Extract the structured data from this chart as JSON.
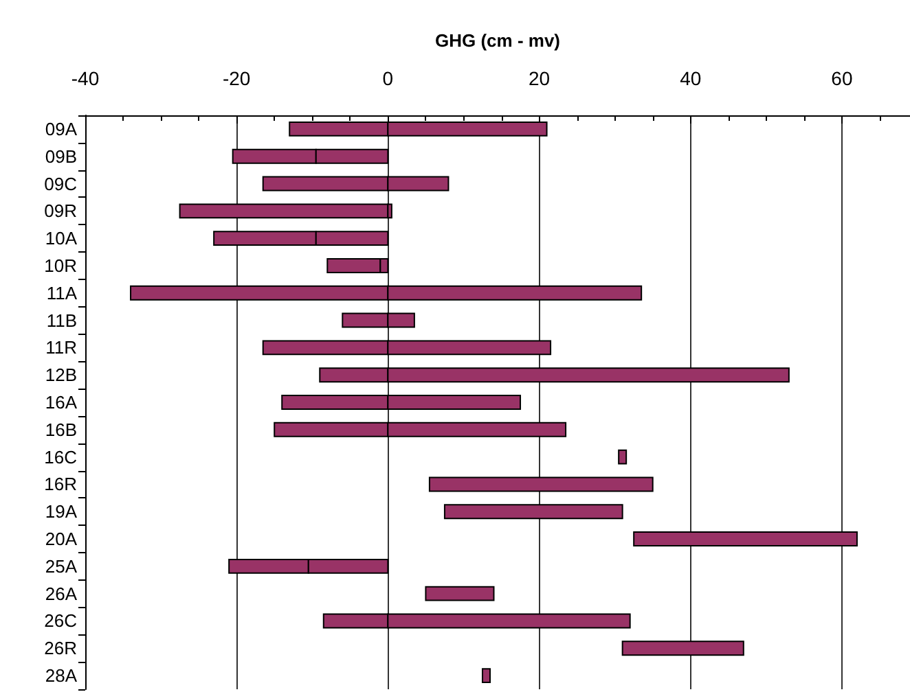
{
  "chart_data": {
    "type": "bar",
    "orientation": "horizontal",
    "xlabel": "GHG (cm - mv)",
    "categories": [
      "09A",
      "09B",
      "09C",
      "09R",
      "10A",
      "10R",
      "11A",
      "11B",
      "11R",
      "12B",
      "16A",
      "16B",
      "16C",
      "16R",
      "19A",
      "20A",
      "25A",
      "26A",
      "26C",
      "26R",
      "28A"
    ],
    "series": [
      {
        "color": "#993366",
        "base": [
          -13,
          -20.5,
          -16.5,
          -27.5,
          -23,
          -8,
          -34,
          -6,
          -16.5,
          -9,
          -14,
          -15,
          30.5,
          5.5,
          7.5,
          32.5,
          -21,
          5,
          -8.5,
          31,
          12.5
        ],
        "values": [
          13,
          11,
          16.5,
          27.5,
          13.5,
          7,
          34,
          6,
          16.5,
          9,
          14,
          15,
          1,
          29.5,
          23.5,
          29.5,
          10.5,
          9,
          8.5,
          16,
          1
        ]
      },
      {
        "color": "#993366",
        "base": [
          0,
          -9.5,
          0,
          0,
          -9.5,
          -1,
          0,
          0,
          0,
          0,
          0,
          0,
          null,
          null,
          null,
          null,
          -10.5,
          null,
          0,
          null,
          null
        ],
        "values": [
          21,
          9.5,
          8,
          0.5,
          9.5,
          1,
          33.5,
          3.5,
          21.5,
          53,
          17.5,
          23.5,
          null,
          null,
          null,
          null,
          10.5,
          null,
          32,
          null,
          null
        ]
      }
    ],
    "xlim": [
      -40,
      69
    ],
    "xticks": [
      -40,
      -20,
      0,
      20,
      40,
      60
    ],
    "grid": "x"
  }
}
